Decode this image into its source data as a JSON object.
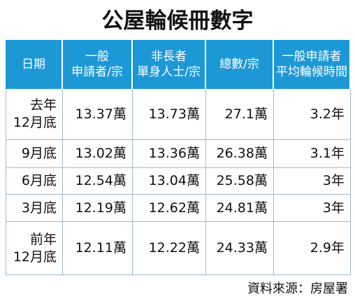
{
  "title": "公屋輪候冊數字",
  "table": {
    "header": [
      [
        "日期"
      ],
      [
        "一般",
        "申請者/宗"
      ],
      [
        "非長者",
        "單身人士/宗"
      ],
      [
        "總數/宗"
      ],
      [
        "一般申請者",
        "平均輪候時間"
      ]
    ],
    "rows": [
      [
        [
          "去年",
          "12月底"
        ],
        "13.37萬",
        "13.73萬",
        "27.1萬",
        "3.2年"
      ],
      [
        [
          "9月底"
        ],
        "13.02萬",
        "13.36萬",
        "26.38萬",
        "3.1年"
      ],
      [
        [
          "6月底"
        ],
        "12.54萬",
        "13.04萬",
        "25.58萬",
        "3年"
      ],
      [
        [
          "3月底"
        ],
        "12.19萬",
        "12.62萬",
        "24.81萬",
        "3年"
      ],
      [
        [
          "前年",
          "12月底"
        ],
        "12.11萬",
        "12.22萬",
        "24.33萬",
        "2.9年"
      ]
    ]
  },
  "source": "資料來源：房屋署"
}
